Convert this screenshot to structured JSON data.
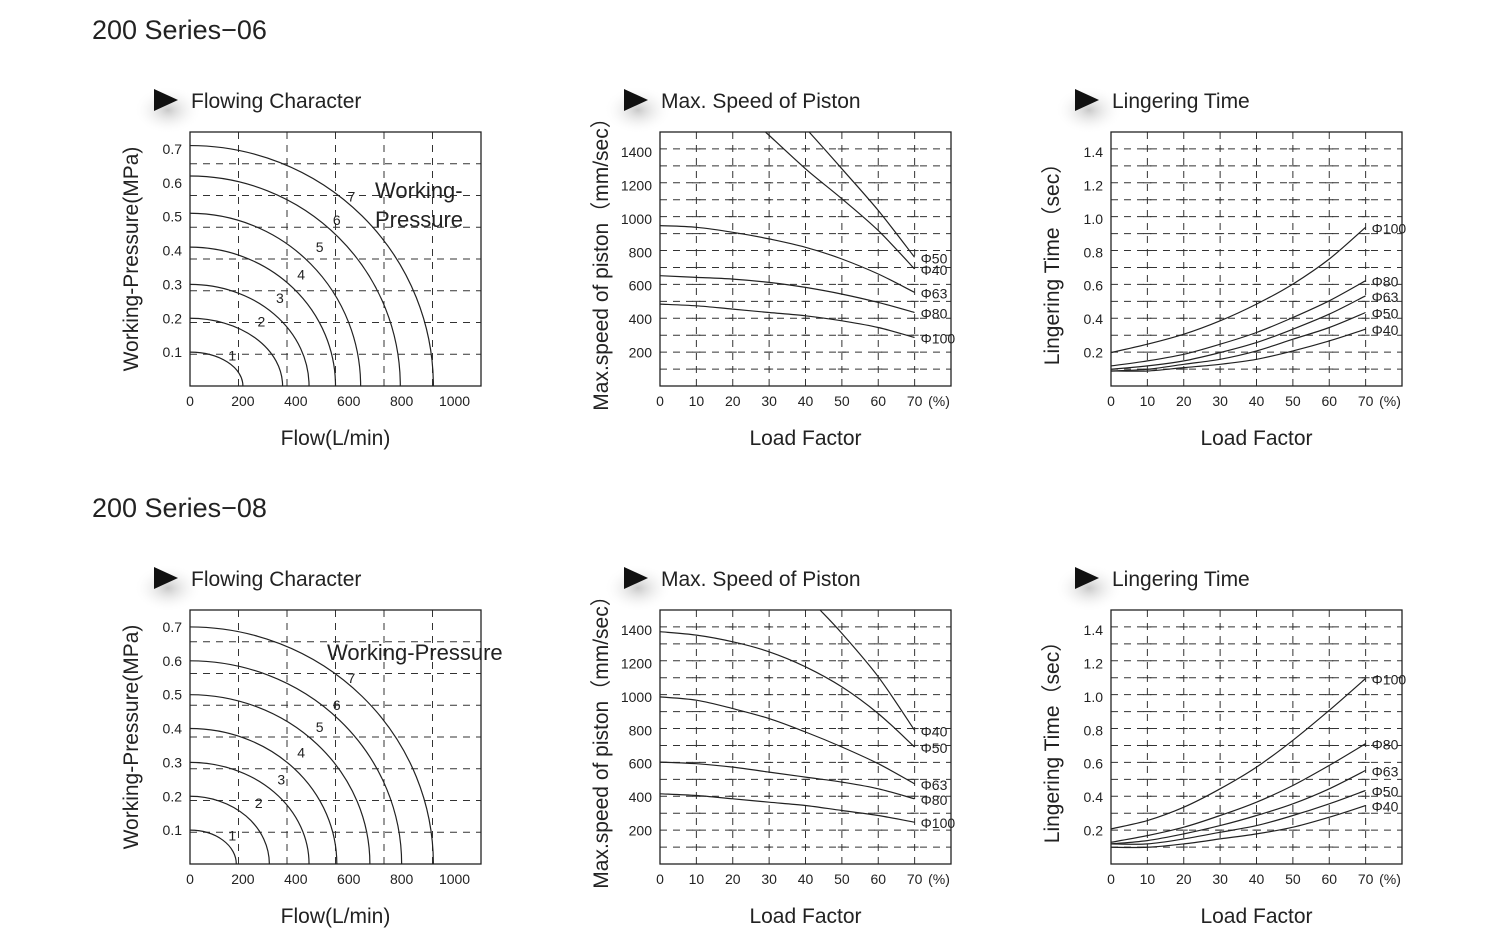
{
  "sections": [
    {
      "title": "200 Series−06",
      "charts": [
        {
          "title": "Flowing Character",
          "chart_data": {
            "type": "line",
            "title": "Flowing Character",
            "xlabel": "Flow(L/min)",
            "ylabel": "Working-Pressure(MPa)",
            "xlim": [
              0,
              1100
            ],
            "ylim": [
              0,
              0.75
            ],
            "x_ticks": [
              "0",
              "200",
              "400",
              "600",
              "800",
              "1000"
            ],
            "y_ticks": [
              "0.1",
              "0.2",
              "0.3",
              "0.4",
              "0.5",
              "0.6",
              "0.7"
            ],
            "annotation": [
              "Working-",
              "Pressure"
            ],
            "series": [
              {
                "name": "1",
                "start_pressure": 0.1,
                "end_flow": 200,
                "label_at": [
                  160,
                  0.075
                ]
              },
              {
                "name": "2",
                "start_pressure": 0.2,
                "end_flow": 350,
                "label_at": [
                  270,
                  0.175
                ]
              },
              {
                "name": "3",
                "start_pressure": 0.3,
                "end_flow": 450,
                "label_at": [
                  340,
                  0.245
                ]
              },
              {
                "name": "4",
                "start_pressure": 0.41,
                "end_flow": 550,
                "label_at": [
                  420,
                  0.315
                ]
              },
              {
                "name": "5",
                "start_pressure": 0.51,
                "end_flow": 645,
                "label_at": [
                  490,
                  0.395
                ]
              },
              {
                "name": "6",
                "start_pressure": 0.62,
                "end_flow": 795,
                "label_at": [
                  555,
                  0.475
                ]
              },
              {
                "name": "7",
                "start_pressure": 0.71,
                "end_flow": 920,
                "label_at": [
                  610,
                  0.545
                ]
              }
            ]
          }
        },
        {
          "title": "Max. Speed of Piston",
          "chart_data": {
            "type": "line",
            "title": "Max. Speed of Piston",
            "xlabel": "Load Factor",
            "ylabel": "Max.speed of piston（mm/sec）",
            "xlim": [
              0,
              80
            ],
            "ylim": [
              0,
              1520
            ],
            "x_unit": "(%)",
            "x_ticks": [
              "0",
              "10",
              "20",
              "30",
              "40",
              "50",
              "60",
              "70"
            ],
            "y_ticks": [
              "200",
              "400",
              "600",
              "800",
              "1000",
              "1200",
              "1400"
            ],
            "series": [
              {
                "name": "Φ40",
                "x": [
                  29,
                  40,
                  50,
                  60,
                  70
                ],
                "y": [
                  1520,
                  1300,
                  1120,
                  930,
                  700
                ]
              },
              {
                "name": "Φ50",
                "x": [
                  41,
                  50,
                  60,
                  70
                ],
                "y": [
                  1520,
                  1300,
                  1050,
                  770
                ]
              },
              {
                "name": "Φ63",
                "x": [
                  0,
                  10,
                  20,
                  30,
                  40,
                  50,
                  60,
                  70
                ],
                "y": [
                  960,
                  950,
                  920,
                  880,
                  830,
                  760,
                  670,
                  560
                ]
              },
              {
                "name": "Φ80",
                "x": [
                  0,
                  10,
                  20,
                  30,
                  40,
                  50,
                  60,
                  70
                ],
                "y": [
                  660,
                  650,
                  640,
                  620,
                  590,
                  550,
                  500,
                  440
                ]
              },
              {
                "name": "Φ100",
                "x": [
                  0,
                  10,
                  20,
                  30,
                  40,
                  50,
                  60,
                  70
                ],
                "y": [
                  490,
                  480,
                  460,
                  440,
                  420,
                  390,
                  350,
                  290
                ]
              }
            ]
          }
        },
        {
          "title": "Lingering Time",
          "chart_data": {
            "type": "line",
            "title": "Lingering Time",
            "xlabel": "Load Factor",
            "ylabel": "Lingering Time（sec）",
            "xlim": [
              0,
              80
            ],
            "ylim": [
              0,
              1.52
            ],
            "x_unit": "(%)",
            "x_ticks": [
              "0",
              "10",
              "20",
              "30",
              "40",
              "50",
              "60",
              "70"
            ],
            "y_ticks": [
              "0.2",
              "0.4",
              "0.6",
              "0.8",
              "1.0",
              "1.2",
              "1.4"
            ],
            "series": [
              {
                "name": "Φ100",
                "x": [
                  0,
                  10,
                  20,
                  30,
                  40,
                  50,
                  60,
                  70
                ],
                "y": [
                  0.2,
                  0.25,
                  0.31,
                  0.39,
                  0.49,
                  0.61,
                  0.76,
                  0.95
                ]
              },
              {
                "name": "Φ80",
                "x": [
                  0,
                  10,
                  20,
                  30,
                  40,
                  50,
                  60,
                  70
                ],
                "y": [
                  0.12,
                  0.15,
                  0.19,
                  0.25,
                  0.32,
                  0.41,
                  0.51,
                  0.63
                ]
              },
              {
                "name": "Φ63",
                "x": [
                  0,
                  10,
                  20,
                  30,
                  40,
                  50,
                  60,
                  70
                ],
                "y": [
                  0.1,
                  0.12,
                  0.15,
                  0.2,
                  0.26,
                  0.34,
                  0.43,
                  0.54
                ]
              },
              {
                "name": "Φ50",
                "x": [
                  0,
                  10,
                  20,
                  30,
                  40,
                  50,
                  60,
                  70
                ],
                "y": [
                  0.09,
                  0.1,
                  0.13,
                  0.16,
                  0.21,
                  0.28,
                  0.35,
                  0.44
                ]
              },
              {
                "name": "Φ40",
                "x": [
                  0,
                  10,
                  20,
                  30,
                  40,
                  50,
                  60,
                  70
                ],
                "y": [
                  0.09,
                  0.09,
                  0.11,
                  0.13,
                  0.16,
                  0.21,
                  0.27,
                  0.34
                ]
              }
            ]
          }
        }
      ]
    },
    {
      "title": "200 Series−08",
      "charts": [
        {
          "title": "Flowing Character",
          "chart_data": {
            "type": "line",
            "title": "Flowing Character",
            "xlabel": "Flow(L/min)",
            "ylabel": "Working-Pressure(MPa)",
            "xlim": [
              0,
              1100
            ],
            "ylim": [
              0,
              0.75
            ],
            "x_ticks": [
              "0",
              "200",
              "400",
              "600",
              "800",
              "1000"
            ],
            "y_ticks": [
              "0.1",
              "0.2",
              "0.3",
              "0.4",
              "0.5",
              "0.6",
              "0.7"
            ],
            "annotation": [
              "Working-Pressure"
            ],
            "series": [
              {
                "name": "1",
                "start_pressure": 0.1,
                "end_flow": 175,
                "label_at": [
                  160,
                  0.07
                ]
              },
              {
                "name": "2",
                "start_pressure": 0.2,
                "end_flow": 300,
                "label_at": [
                  260,
                  0.165
                ]
              },
              {
                "name": "3",
                "start_pressure": 0.3,
                "end_flow": 450,
                "label_at": [
                  345,
                  0.235
                ]
              },
              {
                "name": "4",
                "start_pressure": 0.4,
                "end_flow": 555,
                "label_at": [
                  420,
                  0.315
                ]
              },
              {
                "name": "5",
                "start_pressure": 0.5,
                "end_flow": 680,
                "label_at": [
                  490,
                  0.39
                ]
              },
              {
                "name": "6",
                "start_pressure": 0.6,
                "end_flow": 800,
                "label_at": [
                  555,
                  0.455
                ]
              },
              {
                "name": "7",
                "start_pressure": 0.7,
                "end_flow": 920,
                "label_at": [
                  610,
                  0.535
                ]
              }
            ]
          }
        },
        {
          "title": "Max. Speed of Piston",
          "chart_data": {
            "type": "line",
            "title": "Max. Speed of Piston",
            "xlabel": "Load Factor",
            "ylabel": "Max.speed of piston（mm/sec）",
            "xlim": [
              0,
              80
            ],
            "ylim": [
              0,
              1520
            ],
            "x_unit": "(%)",
            "x_ticks": [
              "0",
              "10",
              "20",
              "30",
              "40",
              "50",
              "60",
              "70"
            ],
            "y_ticks": [
              "200",
              "400",
              "600",
              "800",
              "1000",
              "1200",
              "1400"
            ],
            "series": [
              {
                "name": "Φ40",
                "x": [
                  44,
                  50,
                  60,
                  70
                ],
                "y": [
                  1520,
                  1380,
                  1120,
                  800
                ]
              },
              {
                "name": "Φ50",
                "x": [
                  0,
                  10,
                  20,
                  30,
                  40,
                  50,
                  60,
                  70
                ],
                "y": [
                  1390,
                  1370,
                  1330,
                  1270,
                  1180,
                  1060,
                  900,
                  700
                ]
              },
              {
                "name": "Φ63",
                "x": [
                  0,
                  10,
                  20,
                  30,
                  40,
                  50,
                  60,
                  70
                ],
                "y": [
                  1000,
                  980,
                  930,
                  870,
                  790,
                  700,
                  600,
                  480
                ]
              },
              {
                "name": "Φ80",
                "x": [
                  0,
                  10,
                  20,
                  30,
                  40,
                  50,
                  60,
                  70
                ],
                "y": [
                  610,
                  600,
                  580,
                  550,
                  520,
                  490,
                  450,
                  390
                ]
              },
              {
                "name": "Φ100",
                "x": [
                  0,
                  10,
                  20,
                  30,
                  40,
                  50,
                  60,
                  70
                ],
                "y": [
                  420,
                  410,
                  390,
                  370,
                  350,
                  320,
                  290,
                  250
                ]
              }
            ]
          }
        },
        {
          "title": "Lingering Time",
          "chart_data": {
            "type": "line",
            "title": "Lingering Time",
            "xlabel": "Load Factor",
            "ylabel": "Lingering Time（sec）",
            "xlim": [
              0,
              80
            ],
            "ylim": [
              0,
              1.52
            ],
            "x_unit": "(%)",
            "x_ticks": [
              "0",
              "10",
              "20",
              "30",
              "40",
              "50",
              "60",
              "70"
            ],
            "y_ticks": [
              "0.2",
              "0.4",
              "0.6",
              "0.8",
              "1.0",
              "1.2",
              "1.4"
            ],
            "series": [
              {
                "name": "Φ100",
                "x": [
                  0,
                  10,
                  20,
                  30,
                  40,
                  50,
                  60,
                  70
                ],
                "y": [
                  0.21,
                  0.26,
                  0.34,
                  0.45,
                  0.58,
                  0.74,
                  0.92,
                  1.11
                ]
              },
              {
                "name": "Φ80",
                "x": [
                  0,
                  10,
                  20,
                  30,
                  40,
                  50,
                  60,
                  70
                ],
                "y": [
                  0.13,
                  0.17,
                  0.22,
                  0.29,
                  0.37,
                  0.47,
                  0.59,
                  0.72
                ]
              },
              {
                "name": "Φ63",
                "x": [
                  0,
                  10,
                  20,
                  30,
                  40,
                  50,
                  60,
                  70
                ],
                "y": [
                  0.12,
                  0.14,
                  0.18,
                  0.23,
                  0.29,
                  0.36,
                  0.45,
                  0.56
                ]
              },
              {
                "name": "Φ50",
                "x": [
                  0,
                  10,
                  20,
                  30,
                  40,
                  50,
                  60,
                  70
                ],
                "y": [
                  0.12,
                  0.12,
                  0.15,
                  0.19,
                  0.23,
                  0.29,
                  0.36,
                  0.44
                ]
              },
              {
                "name": "Φ40",
                "x": [
                  0,
                  10,
                  20,
                  30,
                  40,
                  50,
                  60,
                  70
                ],
                "y": [
                  0.1,
                  0.1,
                  0.12,
                  0.15,
                  0.18,
                  0.22,
                  0.28,
                  0.35
                ]
              }
            ]
          }
        }
      ]
    }
  ]
}
